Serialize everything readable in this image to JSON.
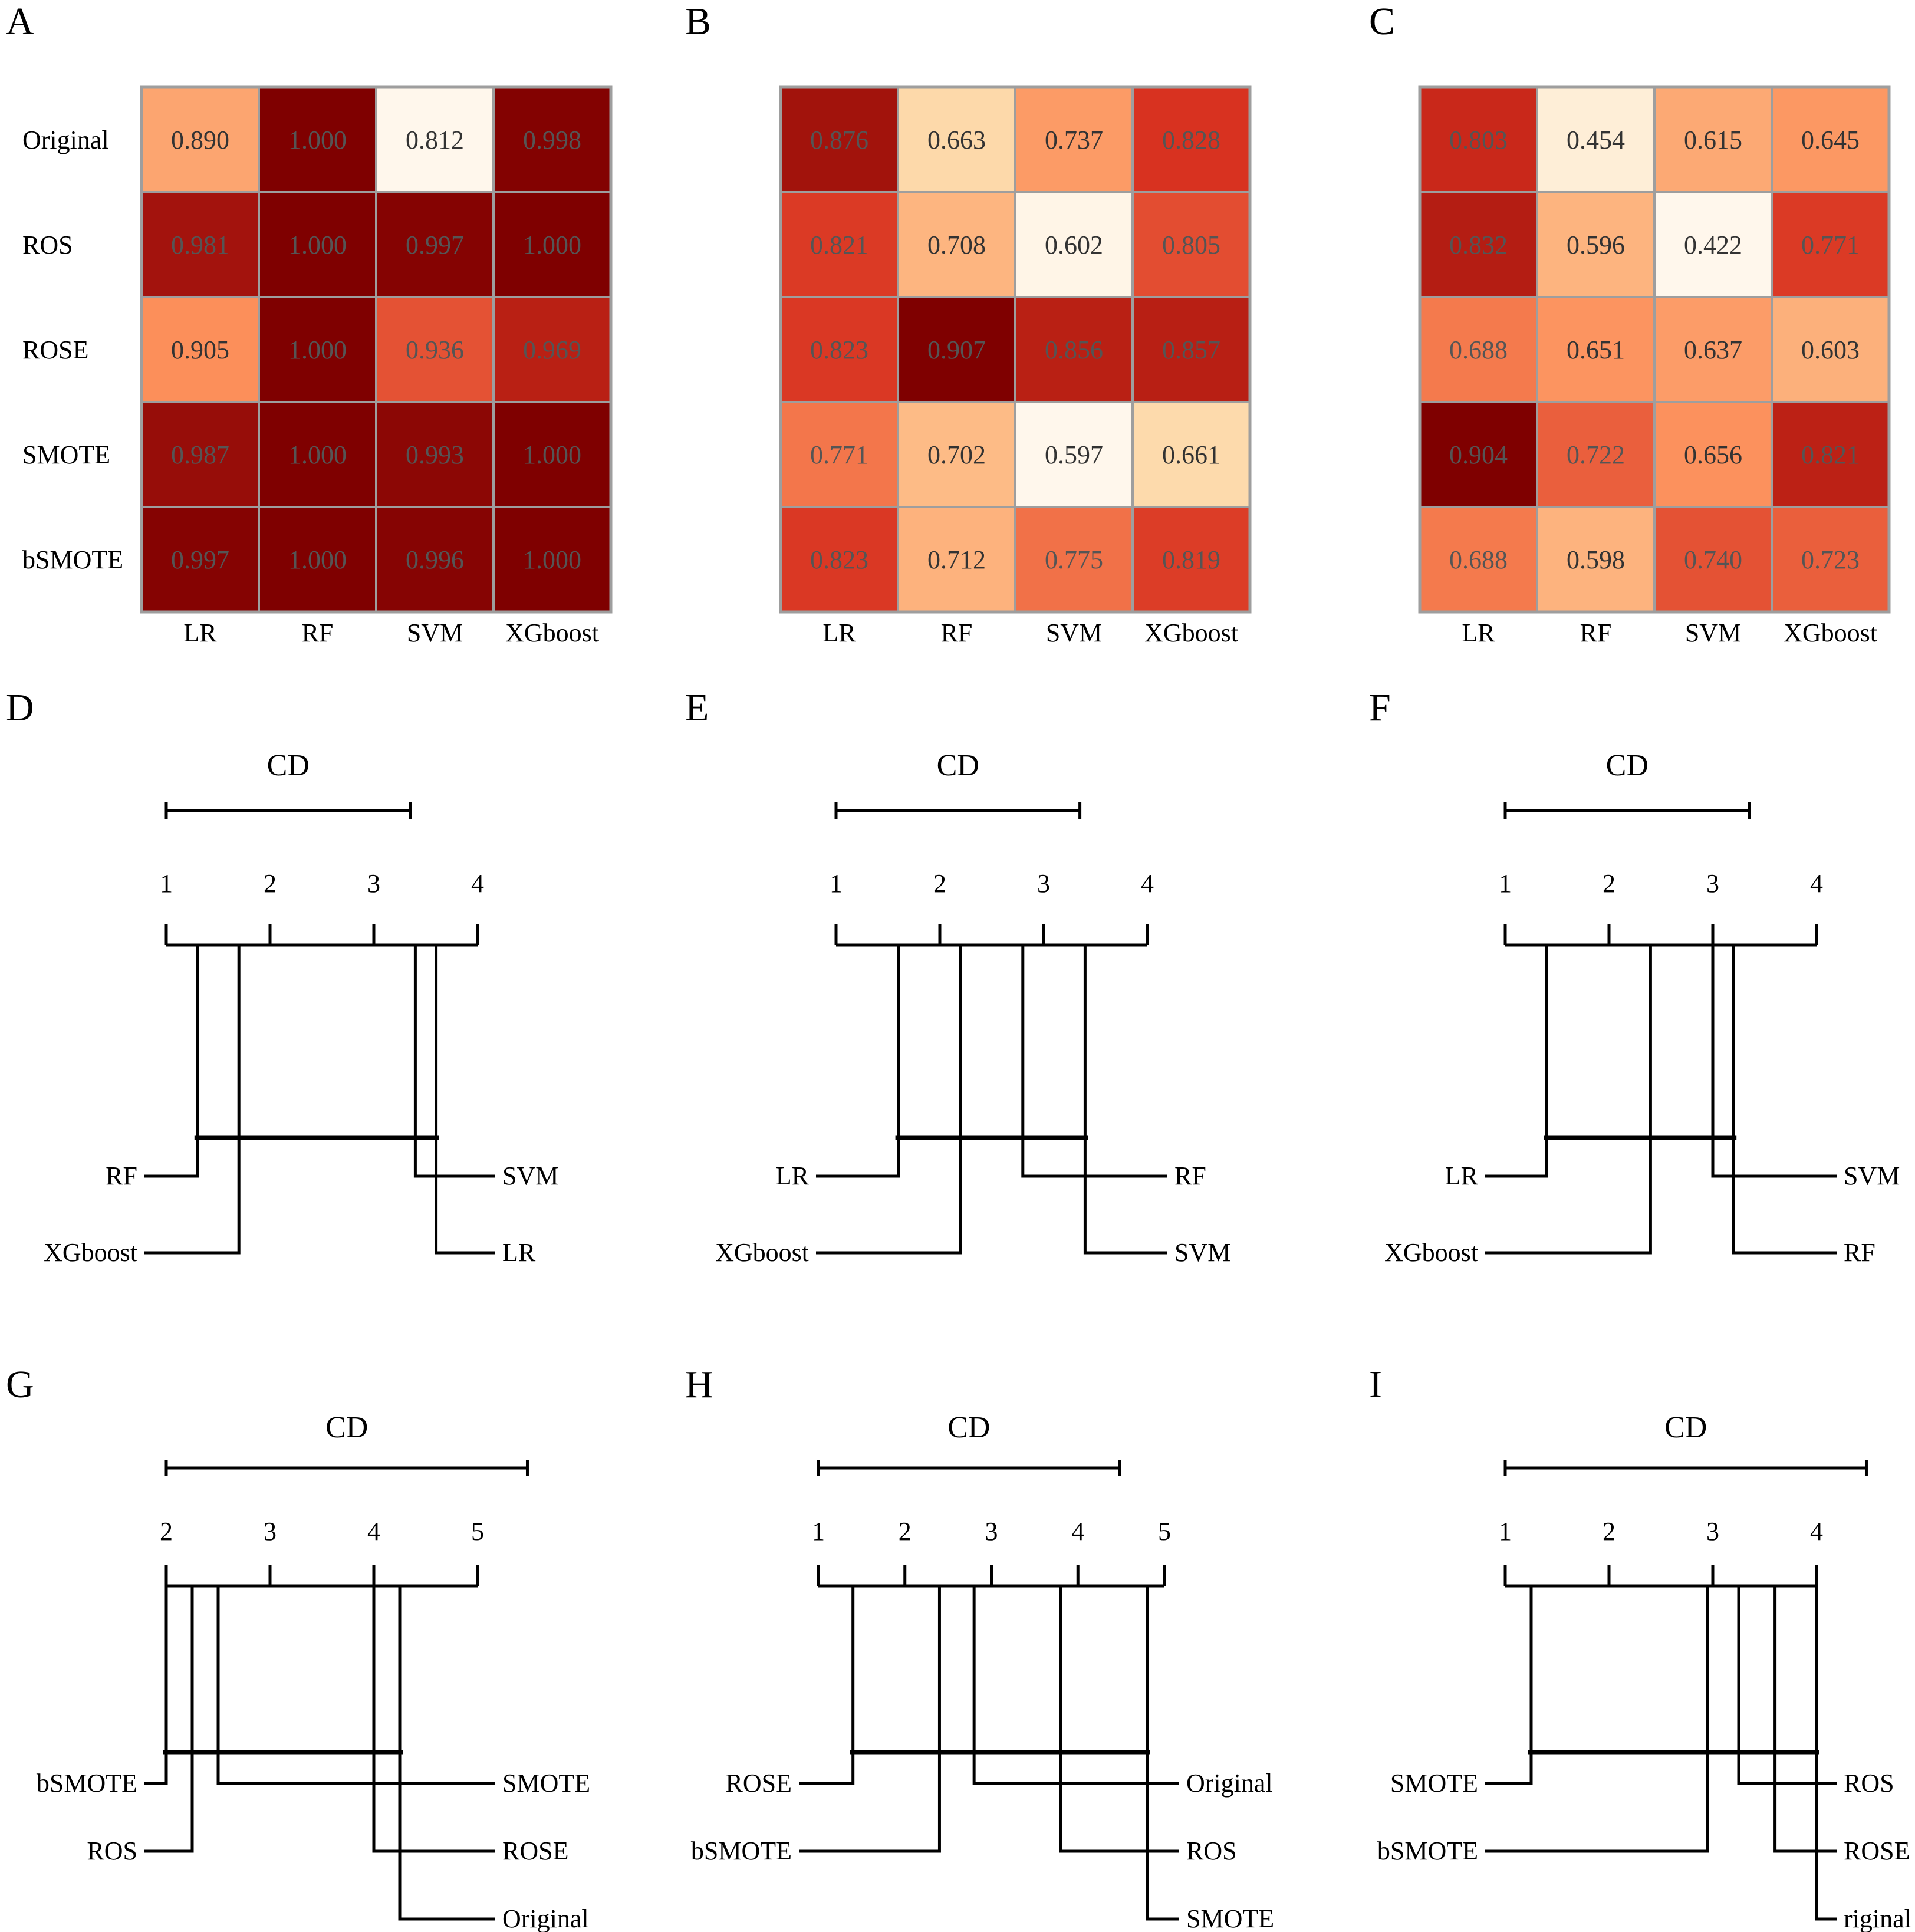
{
  "chart_data": [
    {
      "panel": "A",
      "type": "heatmap",
      "rows": [
        "Original",
        "ROS",
        "ROSE",
        "SMOTE",
        "bSMOTE"
      ],
      "columns": [
        "LR",
        "RF",
        "SVM",
        "XGboost"
      ],
      "values": [
        [
          "0.890",
          "1.000",
          "0.812",
          "0.998"
        ],
        [
          "0.981",
          "1.000",
          "0.997",
          "1.000"
        ],
        [
          "0.905",
          "1.000",
          "0.936",
          "0.969"
        ],
        [
          "0.987",
          "1.000",
          "0.993",
          "1.000"
        ],
        [
          "0.997",
          "1.000",
          "0.996",
          "1.000"
        ]
      ],
      "range": [
        0.812,
        1.0
      ]
    },
    {
      "panel": "B",
      "type": "heatmap",
      "rows": [
        "Original",
        "ROS",
        "ROSE",
        "SMOTE",
        "bSMOTE"
      ],
      "columns": [
        "LR",
        "RF",
        "SVM",
        "XGboost"
      ],
      "values": [
        [
          "0.876",
          "0.663",
          "0.737",
          "0.828"
        ],
        [
          "0.821",
          "0.708",
          "0.602",
          "0.805"
        ],
        [
          "0.823",
          "0.907",
          "0.856",
          "0.857"
        ],
        [
          "0.771",
          "0.702",
          "0.597",
          "0.661"
        ],
        [
          "0.823",
          "0.712",
          "0.775",
          "0.819"
        ]
      ],
      "range": [
        0.597,
        0.907
      ]
    },
    {
      "panel": "C",
      "type": "heatmap",
      "rows": [
        "Original",
        "ROS",
        "ROSE",
        "SMOTE",
        "bSMOTE"
      ],
      "columns": [
        "LR",
        "RF",
        "SVM",
        "XGboost"
      ],
      "values": [
        [
          "0.803",
          "0.454",
          "0.615",
          "0.645"
        ],
        [
          "0.832",
          "0.596",
          "0.422",
          "0.771"
        ],
        [
          "0.688",
          "0.651",
          "0.637",
          "0.603"
        ],
        [
          "0.904",
          "0.722",
          "0.656",
          "0.821"
        ],
        [
          "0.688",
          "0.598",
          "0.740",
          "0.723"
        ]
      ],
      "range": [
        0.422,
        0.904
      ]
    },
    {
      "panel": "D",
      "type": "critical-difference",
      "cd_label": "CD",
      "axis_min": 1,
      "axis_max": 4,
      "ticks": [
        "1",
        "2",
        "3",
        "4"
      ],
      "cd_value": 2.35,
      "left": [
        {
          "name": "RF",
          "rank": 1.3
        },
        {
          "name": "XGboost",
          "rank": 1.7
        }
      ],
      "right": [
        {
          "name": "SVM",
          "rank": 3.4
        },
        {
          "name": "LR",
          "rank": 3.6
        }
      ],
      "cliques": [
        [
          1.3,
          3.6
        ]
      ]
    },
    {
      "panel": "E",
      "type": "critical-difference",
      "cd_label": "CD",
      "axis_min": 1,
      "axis_max": 4,
      "ticks": [
        "1",
        "2",
        "3",
        "4"
      ],
      "cd_value": 2.35,
      "left": [
        {
          "name": "LR",
          "rank": 1.6
        },
        {
          "name": "XGboost",
          "rank": 2.2
        }
      ],
      "right": [
        {
          "name": "RF",
          "rank": 2.8
        },
        {
          "name": "SVM",
          "rank": 3.4
        }
      ],
      "cliques": [
        [
          1.6,
          3.4
        ]
      ]
    },
    {
      "panel": "F",
      "type": "critical-difference",
      "cd_label": "CD",
      "axis_min": 1,
      "axis_max": 4,
      "ticks": [
        "1",
        "2",
        "3",
        "4"
      ],
      "cd_value": 2.35,
      "left": [
        {
          "name": "LR",
          "rank": 1.4
        },
        {
          "name": "XGboost",
          "rank": 2.4
        }
      ],
      "right": [
        {
          "name": "SVM",
          "rank": 3.0
        },
        {
          "name": "RF",
          "rank": 3.2
        }
      ],
      "cliques": [
        [
          1.4,
          3.2
        ]
      ]
    },
    {
      "panel": "G",
      "type": "critical-difference",
      "cd_label": "CD",
      "axis_min": 2,
      "axis_max": 5,
      "ticks": [
        "2",
        "3",
        "4",
        "5"
      ],
      "cd_value": 3.48,
      "left": [
        {
          "name": "bSMOTE",
          "rank": 2.0
        },
        {
          "name": "ROS",
          "rank": 2.25
        }
      ],
      "right": [
        {
          "name": "SMOTE",
          "rank": 2.5
        },
        {
          "name": "ROSE",
          "rank": 4.0
        },
        {
          "name": "Original",
          "rank": 4.25
        }
      ],
      "cliques": [
        [
          2.0,
          4.25
        ]
      ]
    },
    {
      "panel": "H",
      "type": "critical-difference",
      "cd_label": "CD",
      "axis_min": 1,
      "axis_max": 5,
      "ticks": [
        "1",
        "2",
        "3",
        "4",
        "5"
      ],
      "cd_value": 3.48,
      "left": [
        {
          "name": "ROSE",
          "rank": 1.4
        },
        {
          "name": "bSMOTE",
          "rank": 2.4
        }
      ],
      "right": [
        {
          "name": "Original",
          "rank": 2.8
        },
        {
          "name": "ROS",
          "rank": 3.8
        },
        {
          "name": "SMOTE",
          "rank": 4.8
        }
      ],
      "cliques": [
        [
          1.4,
          4.8
        ]
      ]
    },
    {
      "panel": "I",
      "type": "critical-difference",
      "cd_label": "CD",
      "axis_min": 1,
      "axis_max": 4,
      "ticks": [
        "1",
        "2",
        "3",
        "4"
      ],
      "cd_value": 3.48,
      "left": [
        {
          "name": "SMOTE",
          "rank": 1.25
        },
        {
          "name": "bSMOTE",
          "rank": 2.95
        }
      ],
      "right": [
        {
          "name": "ROS",
          "rank": 3.25
        },
        {
          "name": "ROSE",
          "rank": 3.6
        },
        {
          "name": "riginal",
          "rank": 4.0
        }
      ],
      "cliques": [
        [
          1.25,
          4.0
        ]
      ]
    }
  ],
  "colors": {
    "heat_low": "#FFF7EC",
    "heat_mid1": "#FDD49E",
    "heat_mid2": "#FC8D59",
    "heat_mid3": "#D7301F",
    "heat_high": "#7F0000",
    "cell_border": "#9E9E9E",
    "text_light_cell": "#333333",
    "text_dark_cell": "#555555",
    "line": "#000000"
  }
}
